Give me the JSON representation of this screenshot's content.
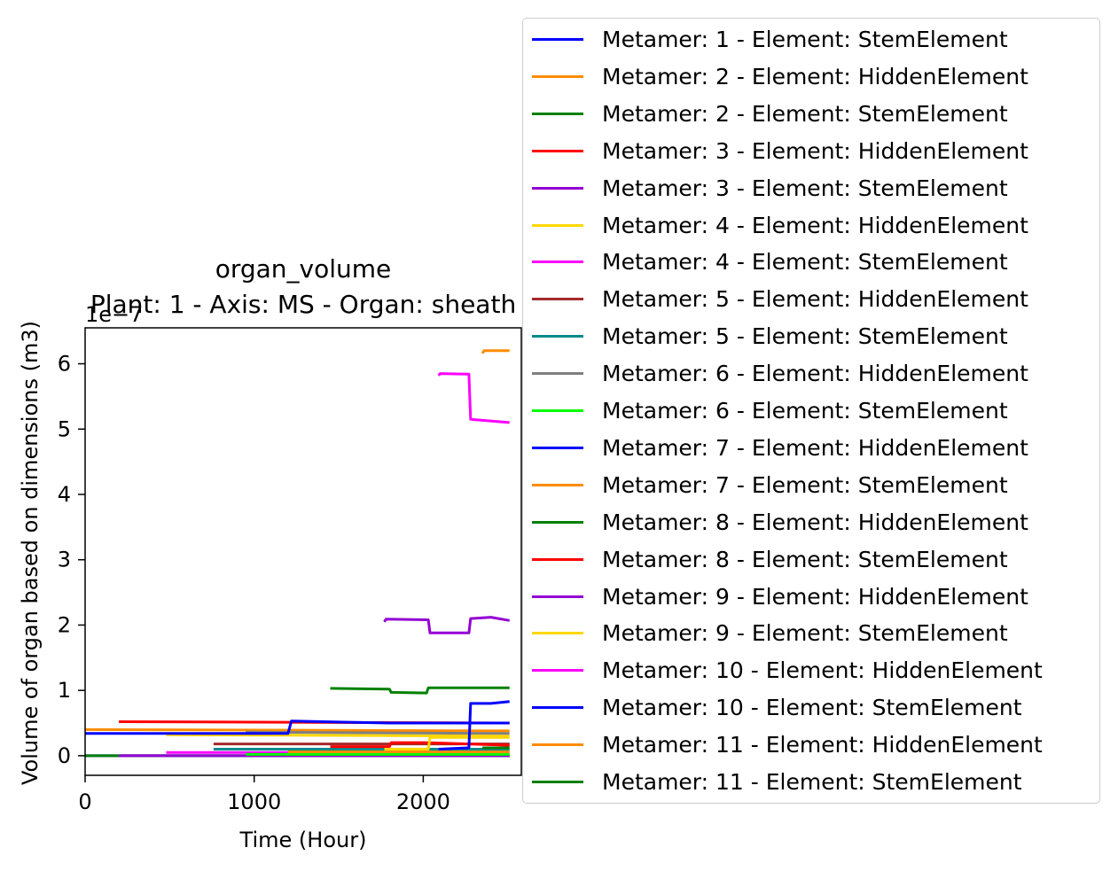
{
  "chart_data": {
    "type": "line",
    "title": "organ_volume",
    "subtitle": "Plant: 1 - Axis: MS - Organ: sheath",
    "xlabel": "Time (Hour)",
    "ylabel": "Volume of organ based on dimensions (m3)",
    "offset_label": "1e−7",
    "xlim": [
      0,
      2580
    ],
    "ylim": [
      -0.3,
      6.55
    ],
    "xticks": [
      0,
      1000,
      2000
    ],
    "xtick_labels": [
      "0",
      "1000",
      "2000"
    ],
    "yticks": [
      0,
      1,
      2,
      3,
      4,
      5,
      6
    ],
    "ytick_labels": [
      "0",
      "1",
      "2",
      "3",
      "4",
      "5",
      "6"
    ],
    "grid": false,
    "legend_position": "outside-right",
    "series": [
      {
        "name": "Metamer: 1 - Element: StemElement",
        "color": "#0000ff",
        "x": [
          0,
          2510
        ],
        "y": [
          0.0,
          0.0
        ]
      },
      {
        "name": "Metamer: 2 - Element: HiddenElement",
        "color": "#ff8c00",
        "x": [
          0,
          2510
        ],
        "y": [
          0.4,
          0.38
        ]
      },
      {
        "name": "Metamer: 2 - Element: StemElement",
        "color": "#008000",
        "x": [
          0,
          2510
        ],
        "y": [
          0.0,
          0.0
        ]
      },
      {
        "name": "Metamer: 3 - Element: HiddenElement",
        "color": "#ff0000",
        "x": [
          200,
          2510
        ],
        "y": [
          0.52,
          0.5
        ]
      },
      {
        "name": "Metamer: 3 - Element: StemElement",
        "color": "#9400d3",
        "x": [
          200,
          2510
        ],
        "y": [
          0.0,
          0.0
        ]
      },
      {
        "name": "Metamer: 4 - Element: HiddenElement",
        "color": "#ffd700",
        "x": [
          480,
          2510
        ],
        "y": [
          0.32,
          0.3
        ]
      },
      {
        "name": "Metamer: 4 - Element: StemElement",
        "color": "#ff00ff",
        "x": [
          480,
          2510
        ],
        "y": [
          0.05,
          0.05
        ]
      },
      {
        "name": "Metamer: 5 - Element: HiddenElement",
        "color": "#a52a2a",
        "x": [
          760,
          2510
        ],
        "y": [
          0.18,
          0.18
        ]
      },
      {
        "name": "Metamer: 5 - Element: StemElement",
        "color": "#008b8b",
        "x": [
          760,
          2510
        ],
        "y": [
          0.1,
          0.1
        ]
      },
      {
        "name": "Metamer: 6 - Element: HiddenElement",
        "color": "#808080",
        "x": [
          950,
          2510
        ],
        "y": [
          0.36,
          0.34
        ]
      },
      {
        "name": "Metamer: 6 - Element: StemElement",
        "color": "#00ff00",
        "x": [
          950,
          2510
        ],
        "y": [
          0.02,
          0.02
        ]
      },
      {
        "name": "Metamer: 7 - Element: HiddenElement",
        "color": "#0000ff",
        "x": [
          0,
          1200,
          1220,
          1800,
          2510
        ],
        "y": [
          0.34,
          0.34,
          0.53,
          0.5,
          0.5
        ]
      },
      {
        "name": "Metamer: 7 - Element: StemElement",
        "color": "#ff8c00",
        "x": [
          1200,
          2510
        ],
        "y": [
          0.06,
          0.06
        ]
      },
      {
        "name": "Metamer: 8 - Element: HiddenElement",
        "color": "#008000",
        "x": [
          1450,
          1800,
          1810,
          2020,
          2030,
          2510
        ],
        "y": [
          1.03,
          1.02,
          0.97,
          0.96,
          1.04,
          1.04
        ]
      },
      {
        "name": "Metamer: 8 - Element: StemElement",
        "color": "#ff0000",
        "x": [
          1450,
          1800,
          1810,
          2010,
          2510
        ],
        "y": [
          0.14,
          0.14,
          0.2,
          0.2,
          0.16
        ]
      },
      {
        "name": "Metamer: 9 - Element: HiddenElement",
        "color": "#9400d3",
        "x": [
          1770,
          1780,
          2030,
          2040,
          2270,
          2280,
          2400,
          2510
        ],
        "y": [
          2.05,
          2.09,
          2.08,
          1.88,
          1.88,
          2.1,
          2.12,
          2.07
        ]
      },
      {
        "name": "Metamer: 9 - Element: StemElement",
        "color": "#ffd700",
        "x": [
          1770,
          2030,
          2040,
          2510
        ],
        "y": [
          0.1,
          0.1,
          0.28,
          0.28
        ]
      },
      {
        "name": "Metamer: 10 - Element: HiddenElement",
        "color": "#ff00ff",
        "x": [
          2090,
          2100,
          2270,
          2280,
          2510
        ],
        "y": [
          5.82,
          5.85,
          5.84,
          5.15,
          5.1
        ]
      },
      {
        "name": "Metamer: 10 - Element: StemElement",
        "color": "#0000ff",
        "x": [
          2090,
          2270,
          2280,
          2400,
          2510
        ],
        "y": [
          0.1,
          0.12,
          0.8,
          0.8,
          0.83
        ]
      },
      {
        "name": "Metamer: 11 - Element: HiddenElement",
        "color": "#ff8c00",
        "x": [
          2350,
          2360,
          2510
        ],
        "y": [
          6.16,
          6.2,
          6.2
        ]
      },
      {
        "name": "Metamer: 11 - Element: StemElement",
        "color": "#008000",
        "x": [
          2350,
          2510
        ],
        "y": [
          0.12,
          0.12
        ]
      }
    ]
  }
}
